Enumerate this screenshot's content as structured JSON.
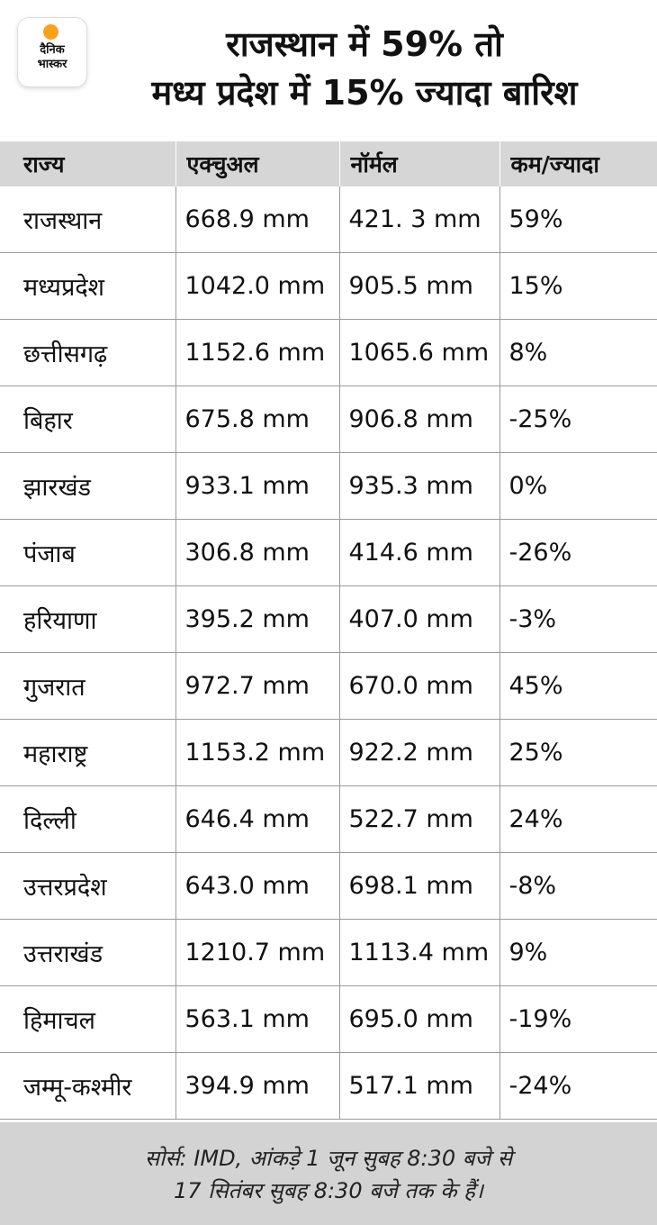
{
  "logo": {
    "line1": "दैनिक",
    "line2": "भास्कर"
  },
  "title_line1": "राजस्थान में 59% तो",
  "title_line2": "मध्य प्रदेश में 15% ज्यादा बारिश",
  "colors": {
    "header_bg": "#d6d6d6",
    "footer_bg": "#d3d3d3",
    "logo_sun": "#f6a21a"
  },
  "chart_data": {
    "type": "table",
    "columns": [
      "राज्य",
      "एक्चुअल",
      "नॉर्मल",
      "कम/ज्यादा"
    ],
    "rows": [
      [
        "राजस्थान",
        "668.9 mm",
        "421. 3 mm",
        "59%"
      ],
      [
        "मध्यप्रदेश",
        "1042.0 mm",
        "905.5 mm",
        "15%"
      ],
      [
        "छत्तीसगढ़",
        "1152.6 mm",
        "1065.6 mm",
        "8%"
      ],
      [
        "बिहार",
        "675.8 mm",
        "906.8 mm",
        "-25%"
      ],
      [
        "झारखंड",
        "933.1 mm",
        "935.3 mm",
        "0%"
      ],
      [
        "पंजाब",
        "306.8 mm",
        "414.6 mm",
        "-26%"
      ],
      [
        "हरियाणा",
        "395.2 mm",
        "407.0 mm",
        "-3%"
      ],
      [
        "गुजरात",
        "972.7 mm",
        "670.0 mm",
        "45%"
      ],
      [
        "महाराष्ट्र",
        "1153.2 mm",
        "922.2 mm",
        "25%"
      ],
      [
        "दिल्ली",
        "646.4 mm",
        "522.7 mm",
        "24%"
      ],
      [
        "उत्तरप्रदेश",
        "643.0 mm",
        "698.1 mm",
        "-8%"
      ],
      [
        "उत्तराखंड",
        "1210.7 mm",
        "1113.4 mm",
        "9%"
      ],
      [
        "हिमाचल",
        "563.1 mm",
        "695.0 mm",
        "-19%"
      ],
      [
        "जम्मू-कश्मीर",
        "394.9 mm",
        "517.1 mm",
        "-24%"
      ]
    ]
  },
  "footer_line1": "सोर्स: IMD, आंकड़े 1 जून सुबह 8:30 बजे से",
  "footer_line2": "17 सितंबर सुबह 8:30 बजे तक के हैं।"
}
